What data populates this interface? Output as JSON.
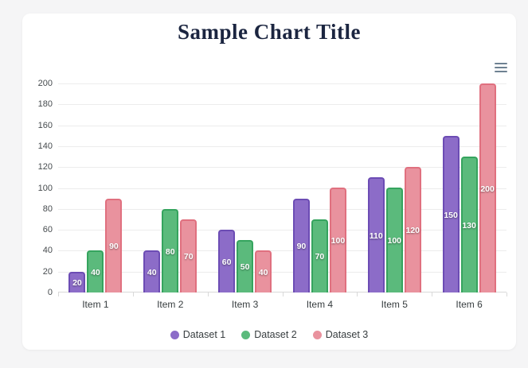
{
  "page": {
    "background": "#f5f5f6",
    "card_background": "#ffffff"
  },
  "toolbar": {
    "menu_icon": "hamburger-menu"
  },
  "chart_data": {
    "type": "bar",
    "title": "Sample Chart Title",
    "title_color": "#1b2540",
    "categories": [
      "Item 1",
      "Item 2",
      "Item 3",
      "Item 4",
      "Item 5",
      "Item 6"
    ],
    "series": [
      {
        "name": "Dataset 1",
        "values": [
          20,
          40,
          60,
          90,
          110,
          150
        ],
        "fill": "#8c6cc8",
        "border": "#6c4cb4"
      },
      {
        "name": "Dataset 2",
        "values": [
          40,
          80,
          50,
          70,
          100,
          130
        ],
        "fill": "#5bba7c",
        "border": "#35a45e"
      },
      {
        "name": "Dataset 3",
        "values": [
          90,
          70,
          40,
          100,
          120,
          200
        ],
        "fill": "#e9929e",
        "border": "#e0707f"
      }
    ],
    "value_labels_shown": true,
    "value_label_color": "#ffffff",
    "ylim": [
      0,
      200
    ],
    "ytick_step": 20,
    "ytick_labels": [
      "0",
      "20",
      "40",
      "60",
      "80",
      "100",
      "120",
      "140",
      "160",
      "180",
      "200"
    ],
    "grid": "horizontal",
    "grid_color": "#ececec",
    "axis_text_color": "#464b4e",
    "legend_position": "bottom"
  }
}
